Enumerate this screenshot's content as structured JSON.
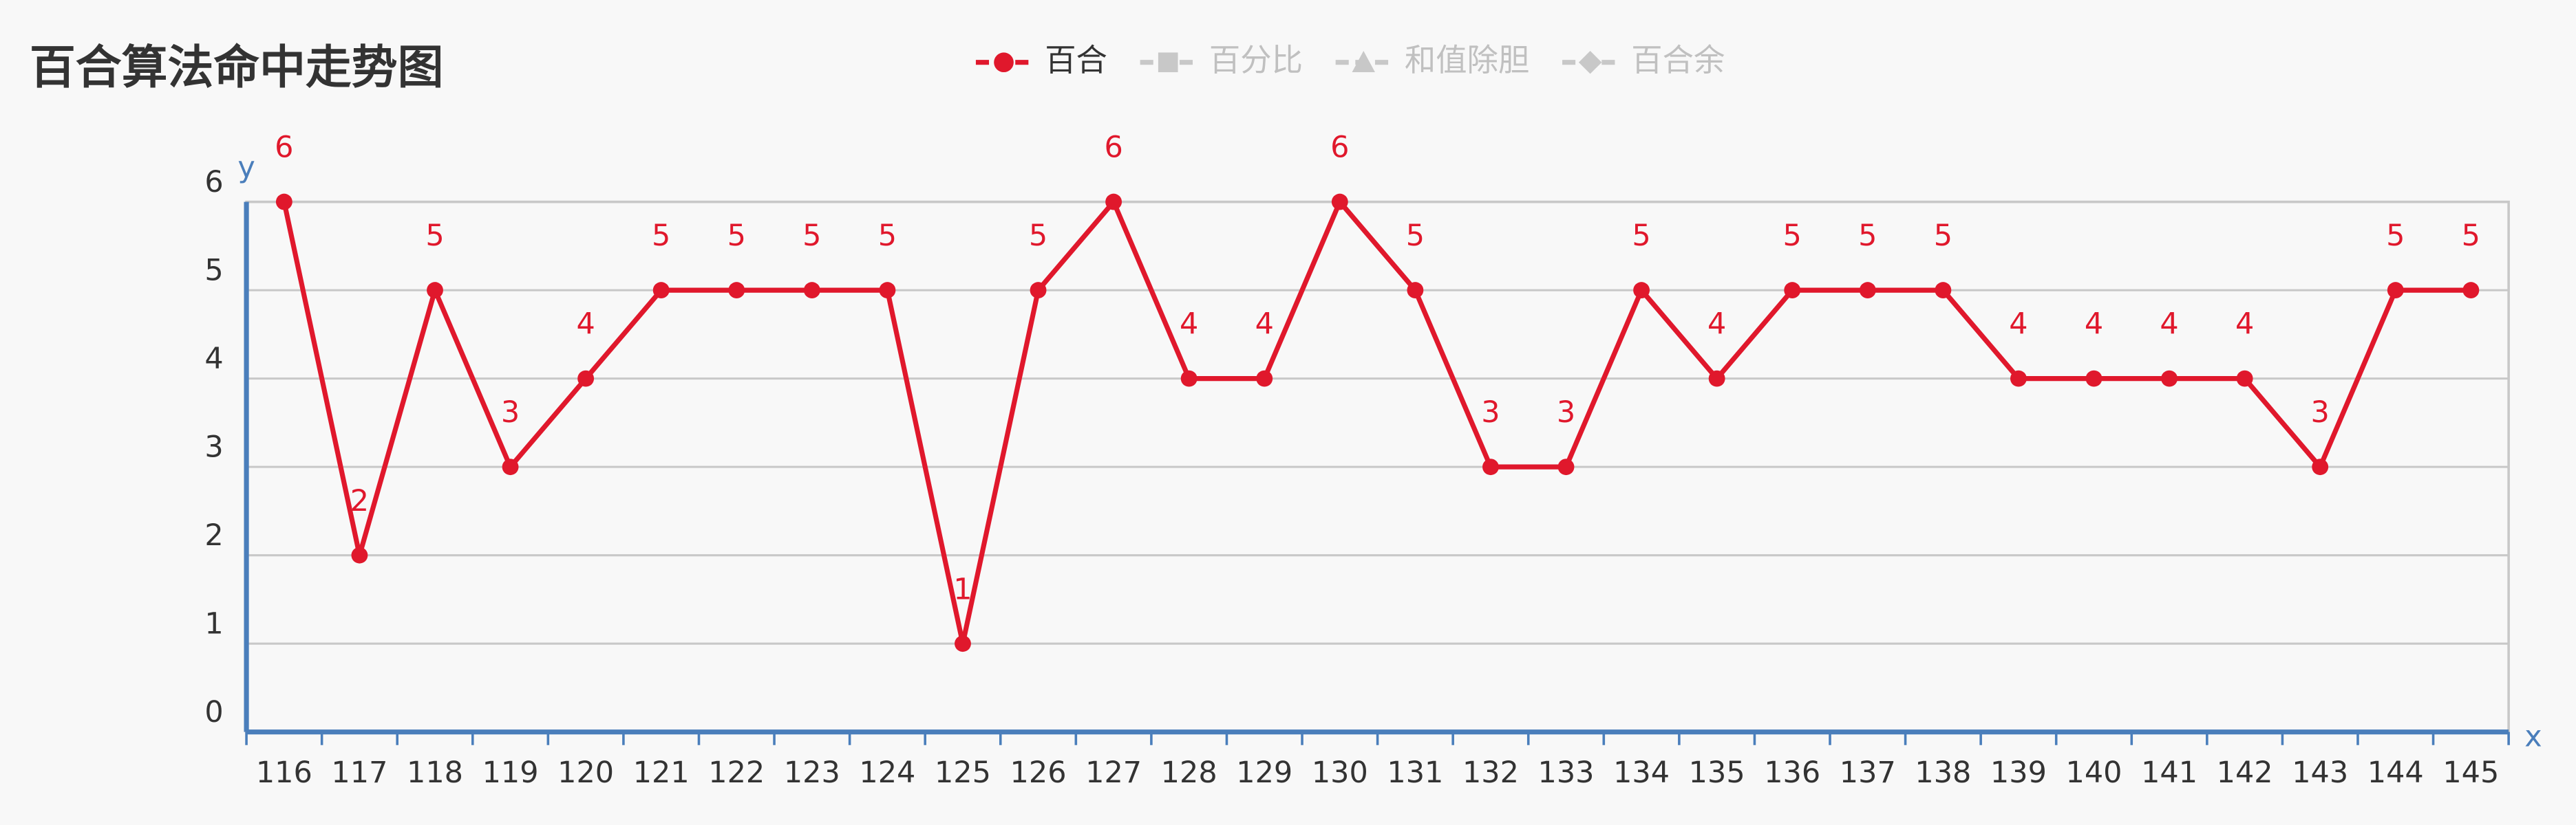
{
  "chart_data": {
    "type": "line",
    "title": "百合算法命中走势图",
    "x_label": "x",
    "y_label": "y",
    "categories": [
      "116",
      "117",
      "118",
      "119",
      "120",
      "121",
      "122",
      "123",
      "124",
      "125",
      "126",
      "127",
      "128",
      "129",
      "130",
      "131",
      "132",
      "133",
      "134",
      "135",
      "136",
      "137",
      "138",
      "139",
      "140",
      "141",
      "142",
      "143",
      "144",
      "145"
    ],
    "series": [
      {
        "name": "百合",
        "color": "#e0182c",
        "values": [
          6,
          2,
          5,
          3,
          4,
          5,
          5,
          5,
          5,
          1,
          5,
          6,
          4,
          4,
          6,
          5,
          3,
          3,
          5,
          4,
          5,
          5,
          5,
          4,
          4,
          4,
          4,
          3,
          5,
          5
        ]
      }
    ],
    "legend": [
      {
        "name": "百合",
        "marker": "circle",
        "color": "#e0182c",
        "active": true
      },
      {
        "name": "百分比",
        "marker": "square",
        "color": "#c8c8c8",
        "active": false
      },
      {
        "name": "和值除胆",
        "marker": "triangle",
        "color": "#c8c8c8",
        "active": false
      },
      {
        "name": "百合余",
        "marker": "diamond",
        "color": "#c8c8c8",
        "active": false
      }
    ],
    "ylim": [
      0,
      6
    ],
    "yticks": [
      0,
      1,
      2,
      3,
      4,
      5,
      6
    ],
    "grid": true,
    "data_labels": true
  }
}
